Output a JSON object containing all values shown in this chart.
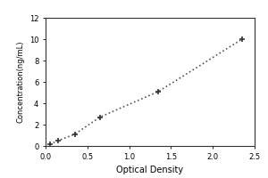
{
  "xlabel": "Optical Density",
  "ylabel": "Concentration(ng/mL)",
  "x_data": [
    0.05,
    0.15,
    0.35,
    0.65,
    1.35,
    2.35
  ],
  "y_data": [
    0.15,
    0.5,
    1.1,
    2.7,
    5.1,
    10.0
  ],
  "xlim": [
    0,
    2.5
  ],
  "ylim": [
    0,
    12
  ],
  "xticks": [
    0,
    0.5,
    1,
    1.5,
    2,
    2.5
  ],
  "yticks": [
    0,
    2,
    4,
    6,
    8,
    10,
    12
  ],
  "line_color": "#555555",
  "marker_color": "#333333",
  "background_color": "#ffffff",
  "outer_background": "#c8c8c8",
  "marker": "+",
  "linestyle": "dotted",
  "linewidth": 1.2,
  "markersize": 5,
  "xlabel_fontsize": 7,
  "ylabel_fontsize": 6,
  "tick_fontsize": 6
}
